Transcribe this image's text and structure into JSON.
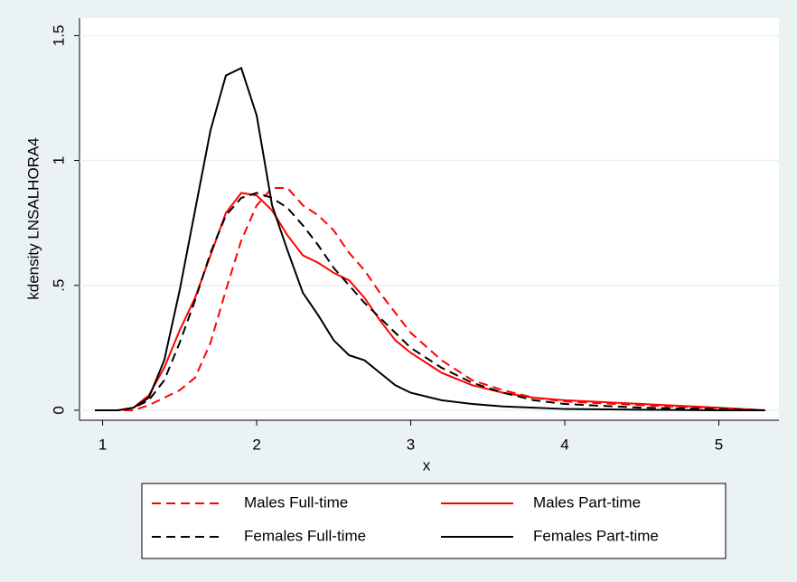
{
  "chart_data": {
    "type": "line",
    "xlabel": "x",
    "ylabel": "kdensity LNSALHORA4",
    "x": [
      0.95,
      1.0,
      1.1,
      1.2,
      1.3,
      1.4,
      1.5,
      1.6,
      1.7,
      1.8,
      1.9,
      2.0,
      2.1,
      2.2,
      2.3,
      2.4,
      2.5,
      2.6,
      2.7,
      2.8,
      2.9,
      3.0,
      3.2,
      3.4,
      3.6,
      3.8,
      4.0,
      4.5,
      5.0,
      5.3
    ],
    "series": [
      {
        "name": "Males Full-time",
        "color": "#ff0000",
        "dash": true,
        "values": [
          0,
          0,
          0,
          0,
          0.02,
          0.05,
          0.08,
          0.13,
          0.27,
          0.48,
          0.68,
          0.82,
          0.89,
          0.89,
          0.82,
          0.78,
          0.72,
          0.63,
          0.56,
          0.47,
          0.39,
          0.31,
          0.2,
          0.12,
          0.08,
          0.05,
          0.035,
          0.02,
          0.008,
          0
        ]
      },
      {
        "name": "Males Part-time",
        "color": "#ff0000",
        "dash": false,
        "values": [
          0,
          0,
          0,
          0.01,
          0.06,
          0.17,
          0.32,
          0.45,
          0.62,
          0.79,
          0.87,
          0.86,
          0.8,
          0.7,
          0.62,
          0.59,
          0.55,
          0.52,
          0.45,
          0.36,
          0.28,
          0.23,
          0.15,
          0.1,
          0.07,
          0.05,
          0.04,
          0.025,
          0.01,
          0
        ]
      },
      {
        "name": "Females Full-time",
        "color": "#000000",
        "dash": true,
        "values": [
          0,
          0,
          0,
          0.01,
          0.04,
          0.12,
          0.27,
          0.44,
          0.63,
          0.78,
          0.85,
          0.87,
          0.85,
          0.81,
          0.74,
          0.66,
          0.57,
          0.5,
          0.43,
          0.37,
          0.31,
          0.25,
          0.17,
          0.11,
          0.07,
          0.04,
          0.025,
          0.01,
          0.005,
          0
        ]
      },
      {
        "name": "Females Part-time",
        "color": "#000000",
        "dash": false,
        "values": [
          0,
          0,
          0,
          0.01,
          0.05,
          0.2,
          0.48,
          0.8,
          1.12,
          1.34,
          1.37,
          1.18,
          0.82,
          0.64,
          0.47,
          0.38,
          0.28,
          0.22,
          0.2,
          0.15,
          0.1,
          0.07,
          0.04,
          0.025,
          0.015,
          0.01,
          0.005,
          0.002,
          0,
          0
        ]
      }
    ],
    "xlim": [
      0.85,
      5.39
    ],
    "xticks": [
      1,
      2,
      3,
      4,
      5
    ],
    "ylim": [
      -0.04,
      1.57
    ],
    "yticks": [
      0,
      {
        "value": 0.5,
        "label": ".5"
      },
      1,
      1.5
    ],
    "grid": true
  }
}
